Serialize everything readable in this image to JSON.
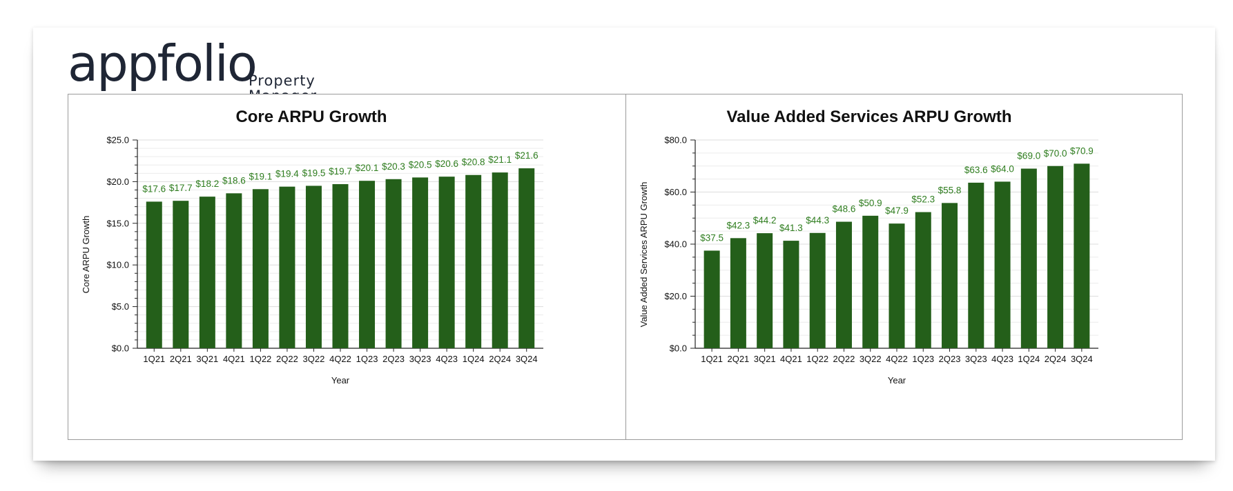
{
  "brand": {
    "name": "appfolio",
    "sub_line1": "Property",
    "sub_line2": "Manager"
  },
  "colors": {
    "bar": "#245f1a",
    "label": "#2e7d1e",
    "grid": "#dcdcdc",
    "axis": "#222222"
  },
  "chart_data": [
    {
      "type": "bar",
      "title": "Core ARPU Growth",
      "xlabel": "Year",
      "ylabel": "Core ARPU Growth",
      "categories": [
        "1Q21",
        "2Q21",
        "3Q21",
        "4Q21",
        "1Q22",
        "2Q22",
        "3Q22",
        "4Q22",
        "1Q23",
        "2Q23",
        "3Q23",
        "4Q23",
        "1Q24",
        "2Q24",
        "3Q24"
      ],
      "values": [
        17.6,
        17.7,
        18.2,
        18.6,
        19.1,
        19.4,
        19.5,
        19.7,
        20.1,
        20.3,
        20.5,
        20.6,
        20.8,
        21.1,
        21.6
      ],
      "value_labels": [
        "$17.6",
        "$17.7",
        "$18.2",
        "$18.6",
        "$19.1",
        "$19.4",
        "$19.5",
        "$19.7",
        "$20.1",
        "$20.3",
        "$20.5",
        "$20.6",
        "$20.8",
        "$21.1",
        "$21.6"
      ],
      "ylim": [
        0,
        25
      ],
      "yticks": [
        0,
        5,
        10,
        15,
        20,
        25
      ],
      "ytick_labels": [
        "$0.0",
        "$5.0",
        "$10.0",
        "$15.0",
        "$20.0",
        "$25.0"
      ],
      "minor_ticks_per_major": 5,
      "grid": true
    },
    {
      "type": "bar",
      "title": "Value Added Services ARPU Growth",
      "xlabel": "Year",
      "ylabel": "Value Added Services ARPU Growth",
      "categories": [
        "1Q21",
        "2Q21",
        "3Q21",
        "4Q21",
        "1Q22",
        "2Q22",
        "3Q22",
        "4Q22",
        "1Q23",
        "2Q23",
        "3Q23",
        "4Q23",
        "1Q24",
        "2Q24",
        "3Q24"
      ],
      "values": [
        37.5,
        42.3,
        44.2,
        41.3,
        44.3,
        48.6,
        50.9,
        47.9,
        52.3,
        55.8,
        63.6,
        64.0,
        69.0,
        70.0,
        70.9
      ],
      "value_labels": [
        "$37.5",
        "$42.3",
        "$44.2",
        "$41.3",
        "$44.3",
        "$48.6",
        "$50.9",
        "$47.9",
        "$52.3",
        "$55.8",
        "$63.6",
        "$64.0",
        "$69.0",
        "$70.0",
        "$70.9"
      ],
      "ylim": [
        0,
        80
      ],
      "yticks": [
        0,
        20,
        40,
        60,
        80
      ],
      "ytick_labels": [
        "$0.0",
        "$20.0",
        "$40.0",
        "$60.0",
        "$80.0"
      ],
      "minor_ticks_per_major": 4,
      "grid": true
    }
  ]
}
